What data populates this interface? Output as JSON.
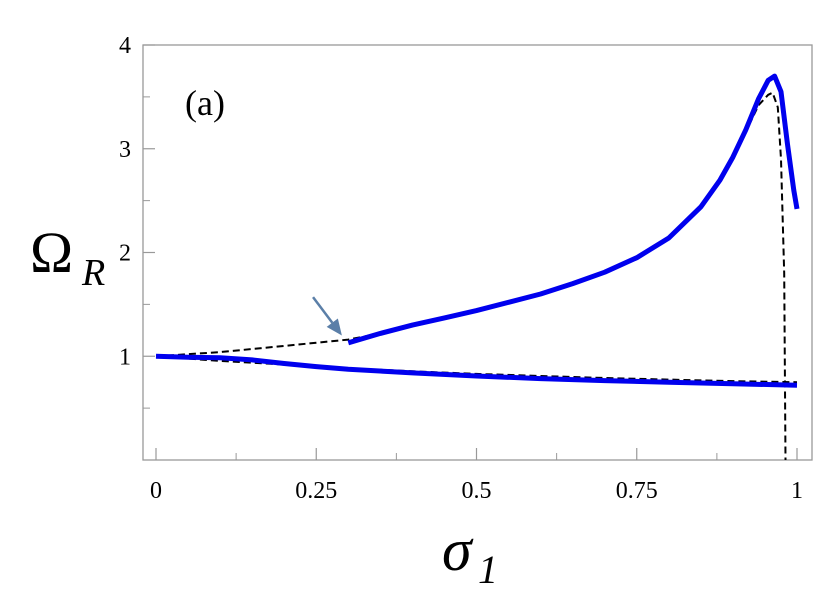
{
  "chart_data": {
    "type": "line",
    "panel_label": "(a)",
    "xlabel": {
      "base": "σ",
      "sub": "1"
    },
    "ylabel": {
      "base": "Ω",
      "sub": "R"
    },
    "xlim": [
      0,
      1
    ],
    "ylim": [
      0,
      4
    ],
    "x_ticks": [
      {
        "value": 0,
        "label": "0"
      },
      {
        "value": 0.25,
        "label": "0.25"
      },
      {
        "value": 0.5,
        "label": "0.5"
      },
      {
        "value": 0.75,
        "label": "0.75"
      },
      {
        "value": 1,
        "label": "1"
      }
    ],
    "y_ticks": [
      {
        "value": 1,
        "label": "1"
      },
      {
        "value": 2,
        "label": "2"
      },
      {
        "value": 3,
        "label": "3"
      },
      {
        "value": 4,
        "label": "4"
      }
    ],
    "y_minor_ticks": [
      0.5,
      1.5,
      2.5,
      3.5
    ],
    "x_minor_ticks": [
      0.125,
      0.375,
      0.625,
      0.875
    ],
    "grid": false,
    "colors": {
      "solid": "#0000ee",
      "dashed": "#000000",
      "arrow": "#5b7fa8"
    },
    "series": [
      {
        "style": "solid",
        "x": [
          0.3,
          0.35,
          0.4,
          0.45,
          0.5,
          0.55,
          0.6,
          0.65,
          0.7,
          0.75,
          0.8,
          0.85,
          0.88,
          0.9,
          0.92,
          0.94,
          0.955,
          0.965,
          0.975,
          0.985,
          0.995,
          1.0
        ],
        "y": [
          1.13,
          1.22,
          1.3,
          1.37,
          1.44,
          1.52,
          1.6,
          1.7,
          1.81,
          1.95,
          2.14,
          2.44,
          2.7,
          2.92,
          3.18,
          3.48,
          3.66,
          3.7,
          3.55,
          3.05,
          2.6,
          2.42
        ]
      },
      {
        "style": "solid",
        "x": [
          0.0,
          0.05,
          0.1,
          0.15,
          0.2,
          0.25,
          0.3,
          0.4,
          0.5,
          0.6,
          0.7,
          0.8,
          0.9,
          1.0
        ],
        "y": [
          1.0,
          0.99,
          0.985,
          0.965,
          0.93,
          0.9,
          0.875,
          0.84,
          0.81,
          0.785,
          0.765,
          0.75,
          0.735,
          0.72
        ]
      },
      {
        "style": "dashed",
        "x": [
          0.0,
          0.1,
          0.2,
          0.3,
          0.35,
          0.4,
          0.45,
          0.5,
          0.55,
          0.6,
          0.65,
          0.7,
          0.75,
          0.8,
          0.85,
          0.88,
          0.9,
          0.92,
          0.94,
          0.955,
          0.962,
          0.97,
          0.975,
          0.98,
          0.982
        ],
        "y": [
          1.0,
          1.04,
          1.1,
          1.16,
          1.22,
          1.3,
          1.37,
          1.44,
          1.52,
          1.6,
          1.7,
          1.81,
          1.95,
          2.14,
          2.44,
          2.7,
          2.92,
          3.16,
          3.42,
          3.52,
          3.54,
          3.4,
          2.9,
          1.8,
          0.0
        ]
      },
      {
        "style": "dashed",
        "x": [
          0.0,
          0.1,
          0.2,
          0.3,
          0.4,
          0.5,
          0.6,
          0.7,
          0.8,
          0.9,
          1.0
        ],
        "y": [
          1.0,
          0.955,
          0.92,
          0.885,
          0.855,
          0.83,
          0.81,
          0.79,
          0.775,
          0.76,
          0.75
        ]
      }
    ],
    "annotations": [
      {
        "type": "arrow",
        "from": [
          0.245,
          1.57
        ],
        "to": [
          0.29,
          1.2
        ]
      }
    ]
  }
}
